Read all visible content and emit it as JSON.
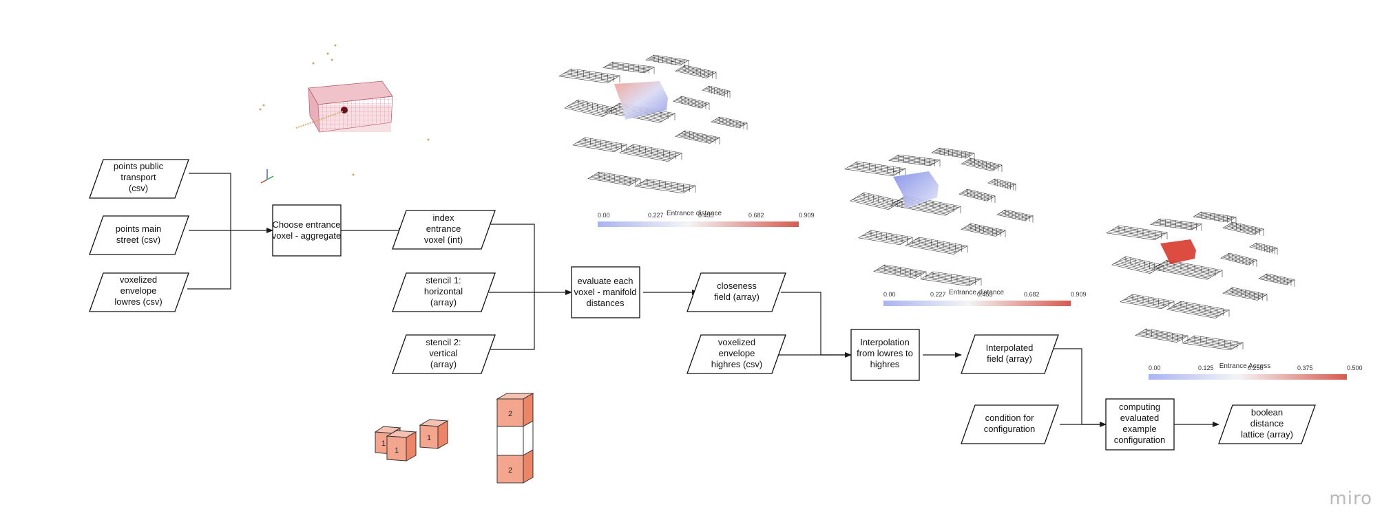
{
  "brand": {
    "logo": "miro"
  },
  "nodes": {
    "in_transport": [
      "points public",
      "transport",
      "(csv)"
    ],
    "in_street": [
      "points main",
      "street (csv)"
    ],
    "in_env_low": [
      "voxelized",
      "envelope",
      "lowres (csv)"
    ],
    "choose": [
      "Choose entrance",
      "voxel - aggregate"
    ],
    "index": [
      "index",
      "entrance",
      "voxel (int)"
    ],
    "stencil1": [
      "stencil 1:",
      "horizontal",
      "(array)"
    ],
    "stencil2": [
      "stencil 2:",
      "vertical",
      "(array)"
    ],
    "evaluate": [
      "evaluate each",
      "voxel - manifold",
      "distances"
    ],
    "closeness": [
      "closeness",
      "field (array)"
    ],
    "env_high": [
      "voxelized",
      "envelope",
      "highres (csv)"
    ],
    "interp": [
      "Interpolation",
      "from lowres to",
      "highres"
    ],
    "interp_field": [
      "Interpolated",
      "field (array)"
    ],
    "condition": [
      "condition for",
      "configuration"
    ],
    "computing": [
      "computing",
      "evaluated",
      "example",
      "configuration"
    ],
    "boolean": [
      "boolean",
      "distance",
      "lattice (array)"
    ]
  },
  "colorbars": [
    {
      "title": "Entrance distance",
      "ticks": [
        "0.00",
        "0.227",
        "0.455",
        "0.682",
        "0.909"
      ]
    },
    {
      "title": "Entrance distance",
      "ticks": [
        "0.00",
        "0.227",
        "0.455",
        "0.682",
        "0.909"
      ]
    },
    {
      "title": "Entrance Access",
      "ticks": [
        "0.00",
        "0.125",
        "0.250",
        "0.375",
        "0.500"
      ]
    }
  ],
  "stencil_cubes": {
    "horizontal": [
      "1",
      "1",
      "1"
    ],
    "vertical": [
      "2",
      "2"
    ]
  },
  "colors": {
    "cb_low": "#9aa8f0",
    "cb_mid": "#f2f2f2",
    "cb_high": "#d9534a",
    "cube": "#f4a58d",
    "cube_dark": "#ee8466",
    "voxel": "#e7a6b0"
  }
}
